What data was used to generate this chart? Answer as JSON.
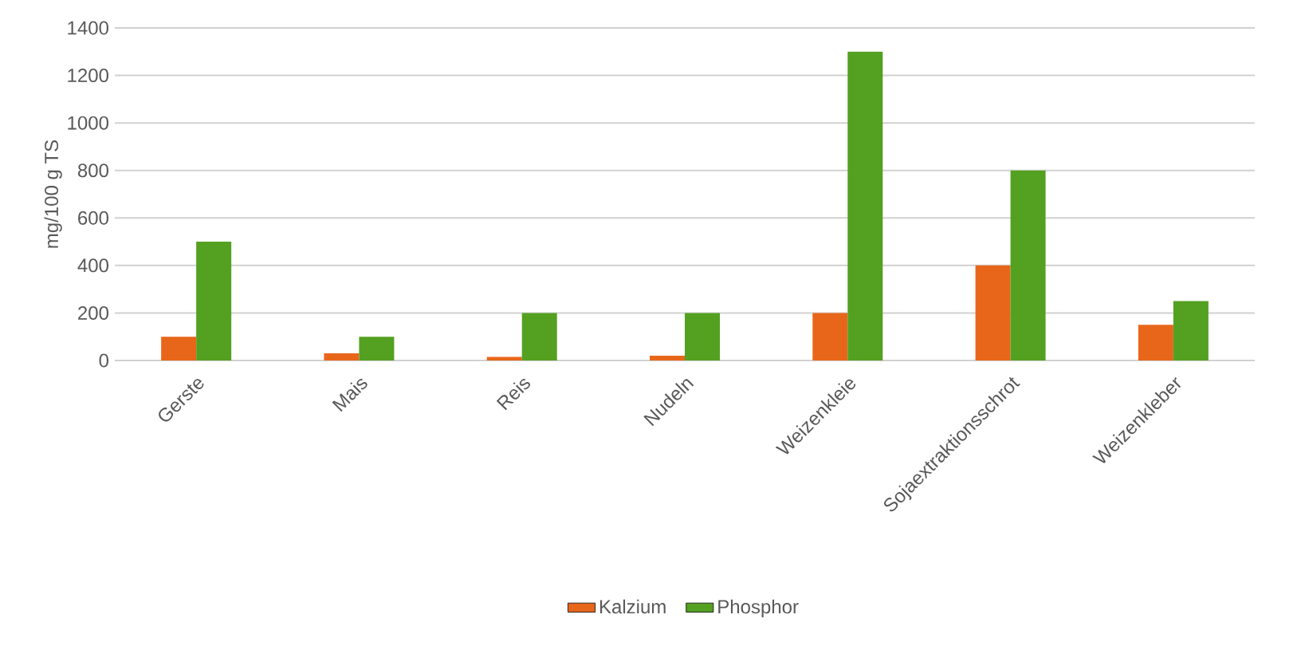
{
  "chart_data": {
    "type": "bar",
    "ylabel": "mg/100 g TS",
    "categories": [
      "Gerste",
      "Mais",
      "Reis",
      "Nudeln",
      "Weizenkleie",
      "Sojaextraktionsschrot",
      "Weizenkleber"
    ],
    "series": [
      {
        "name": "Kalzium",
        "color": "#e8661a",
        "values": [
          100,
          30,
          15,
          20,
          200,
          400,
          150
        ]
      },
      {
        "name": "Phosphor",
        "color": "#54a021",
        "values": [
          500,
          100,
          200,
          200,
          1300,
          800,
          250
        ]
      }
    ],
    "ylim": [
      0,
      1400
    ],
    "yticks": [
      0,
      200,
      400,
      600,
      800,
      1000,
      1200,
      1400
    ],
    "grid": "y",
    "legend": "bottom"
  }
}
